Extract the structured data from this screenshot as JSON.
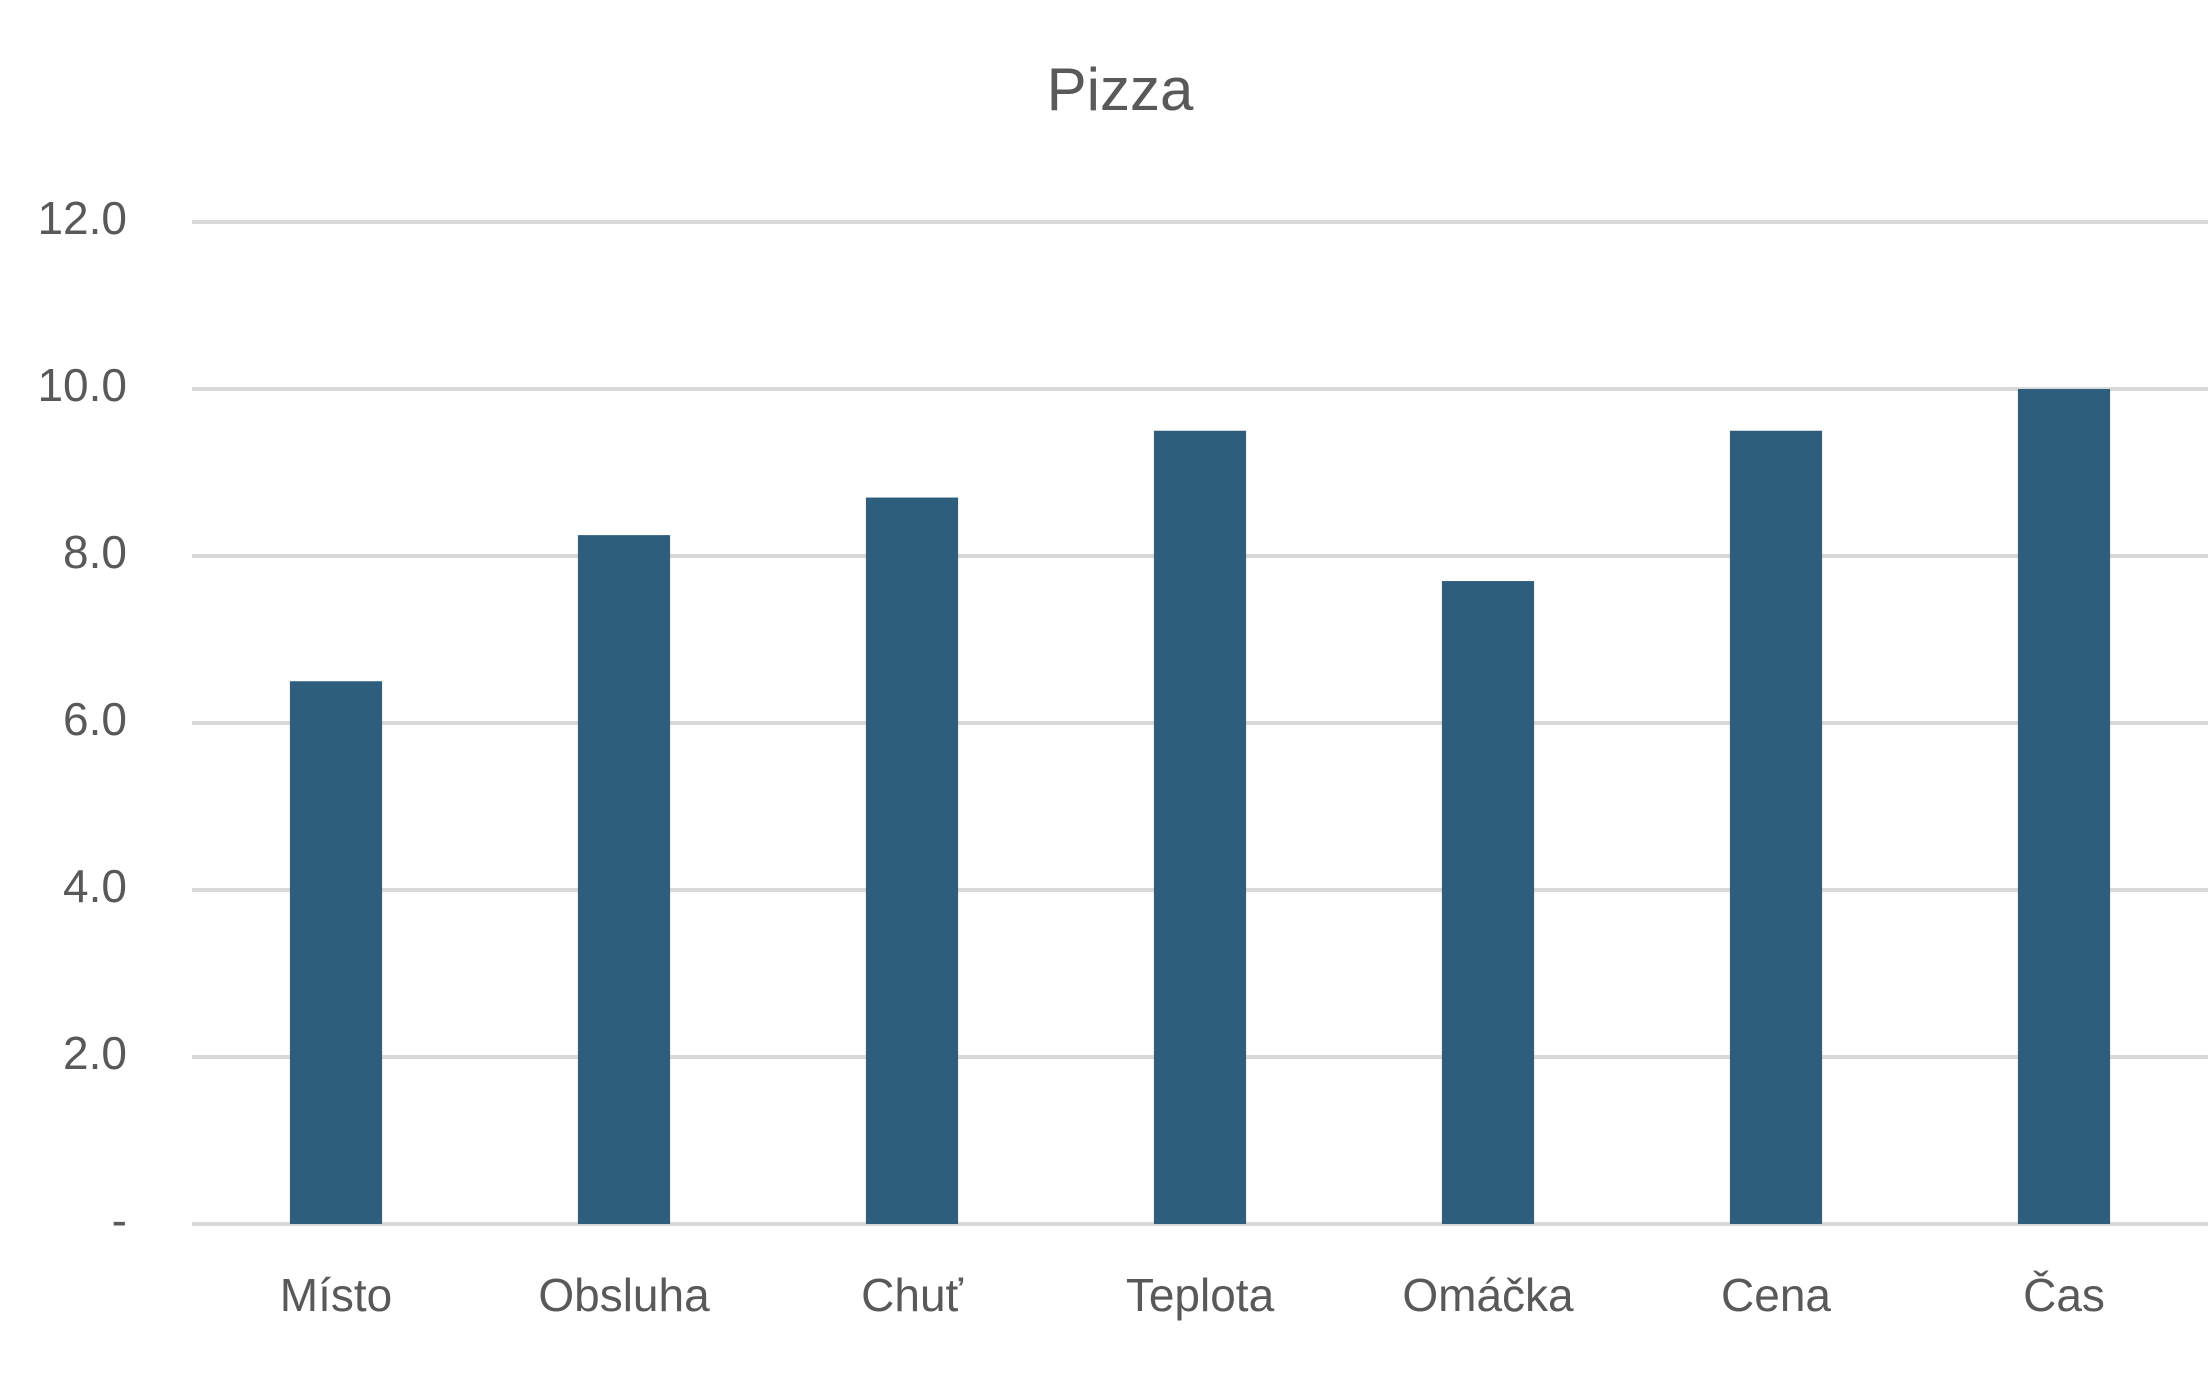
{
  "chart_data": {
    "type": "bar",
    "title": "Pizza",
    "categories": [
      "Místo",
      "Obsluha",
      "Chuť",
      "Teplota",
      "Omáčka",
      "Cena",
      "Čas"
    ],
    "values": [
      6.5,
      8.25,
      8.7,
      9.5,
      7.7,
      9.5,
      10.0
    ],
    "color": "#2e5e7e",
    "ylim": [
      0,
      12
    ],
    "yticks": [
      {
        "value": 0,
        "label": "-"
      },
      {
        "value": 2,
        "label": "2.0"
      },
      {
        "value": 4,
        "label": "4.0"
      },
      {
        "value": 6,
        "label": "6.0"
      },
      {
        "value": 8,
        "label": "8.0"
      },
      {
        "value": 10,
        "label": "10.0"
      },
      {
        "value": 12,
        "label": "12.0"
      }
    ],
    "grid": true
  }
}
